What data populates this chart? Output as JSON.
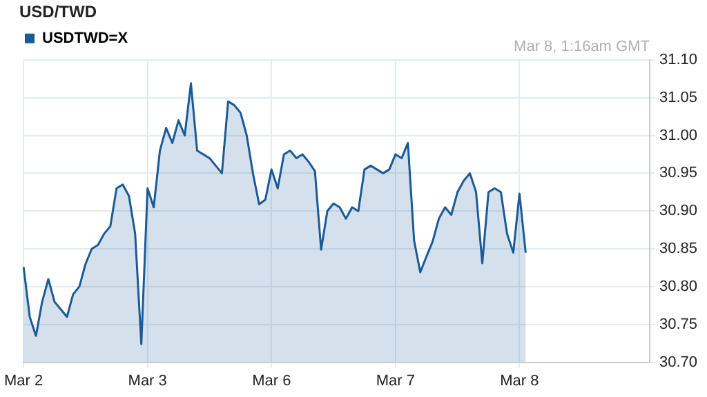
{
  "chart_data": {
    "type": "area",
    "title": "USD/TWD",
    "annotations": [
      "Mar 8, 1:16am GMT"
    ],
    "categories": [
      "Mar 2",
      null,
      null,
      null,
      null,
      null,
      null,
      null,
      null,
      null,
      null,
      null,
      null,
      null,
      null,
      null,
      null,
      null,
      null,
      null,
      "Mar 3",
      null,
      null,
      null,
      null,
      null,
      null,
      null,
      null,
      null,
      null,
      null,
      null,
      null,
      null,
      null,
      null,
      null,
      null,
      null,
      "Mar 6",
      null,
      null,
      null,
      null,
      null,
      null,
      null,
      null,
      null,
      null,
      null,
      null,
      null,
      null,
      null,
      null,
      null,
      null,
      null,
      "Mar 7",
      null,
      null,
      null,
      null,
      null,
      null,
      null,
      null,
      null,
      null,
      null,
      null,
      null,
      null,
      null,
      null,
      null,
      null,
      null,
      "Mar 8",
      null,
      null,
      null,
      null,
      null,
      null,
      null,
      null,
      null,
      null,
      null,
      null,
      null,
      null,
      null,
      null,
      null,
      null,
      null,
      null,
      null
    ],
    "series": [
      {
        "name": "USDTWD=X",
        "color": "#1a5a96",
        "values": [
          30.826,
          30.76,
          30.735,
          30.78,
          30.81,
          30.78,
          30.77,
          30.76,
          30.79,
          30.8,
          30.83,
          30.85,
          30.855,
          30.87,
          30.88,
          30.93,
          30.935,
          30.92,
          30.87,
          30.724,
          30.93,
          30.905,
          30.98,
          31.01,
          30.99,
          31.02,
          31,
          31.069,
          30.98,
          30.975,
          30.97,
          30.96,
          30.95,
          31.045,
          31.04,
          31.03,
          31,
          30.95,
          30.909,
          30.915,
          30.955,
          30.93,
          30.975,
          30.98,
          30.97,
          30.975,
          30.965,
          30.953,
          30.849,
          30.9,
          30.91,
          30.905,
          30.89,
          30.905,
          30.9,
          30.955,
          30.96,
          30.955,
          30.95,
          30.955,
          30.975,
          30.97,
          30.99,
          30.861,
          30.819,
          30.84,
          30.86,
          30.89,
          30.905,
          30.895,
          30.925,
          30.94,
          30.95,
          30.925,
          30.831,
          30.925,
          30.93,
          30.925,
          30.87,
          30.845,
          30.923,
          30.845,
          null,
          null,
          null,
          null,
          null,
          null,
          null,
          null,
          null,
          null,
          null,
          null,
          null,
          null,
          null,
          null,
          null,
          null,
          null,
          null
        ]
      }
    ],
    "ylim": [
      30.7,
      31.1
    ],
    "yticks": [
      {
        "value": 30.7,
        "label": "30.70"
      },
      {
        "value": 30.75,
        "label": "30.75"
      },
      {
        "value": 30.8,
        "label": "30.80"
      },
      {
        "value": 30.85,
        "label": "30.85"
      },
      {
        "value": 30.9,
        "label": "30.90"
      },
      {
        "value": 30.95,
        "label": "30.95"
      },
      {
        "value": 31,
        "label": "31.00"
      },
      {
        "value": 31.05,
        "label": "31.05"
      },
      {
        "value": 31.1,
        "label": "31.10"
      }
    ],
    "grid": true,
    "legend": "top left",
    "marker": "none"
  }
}
